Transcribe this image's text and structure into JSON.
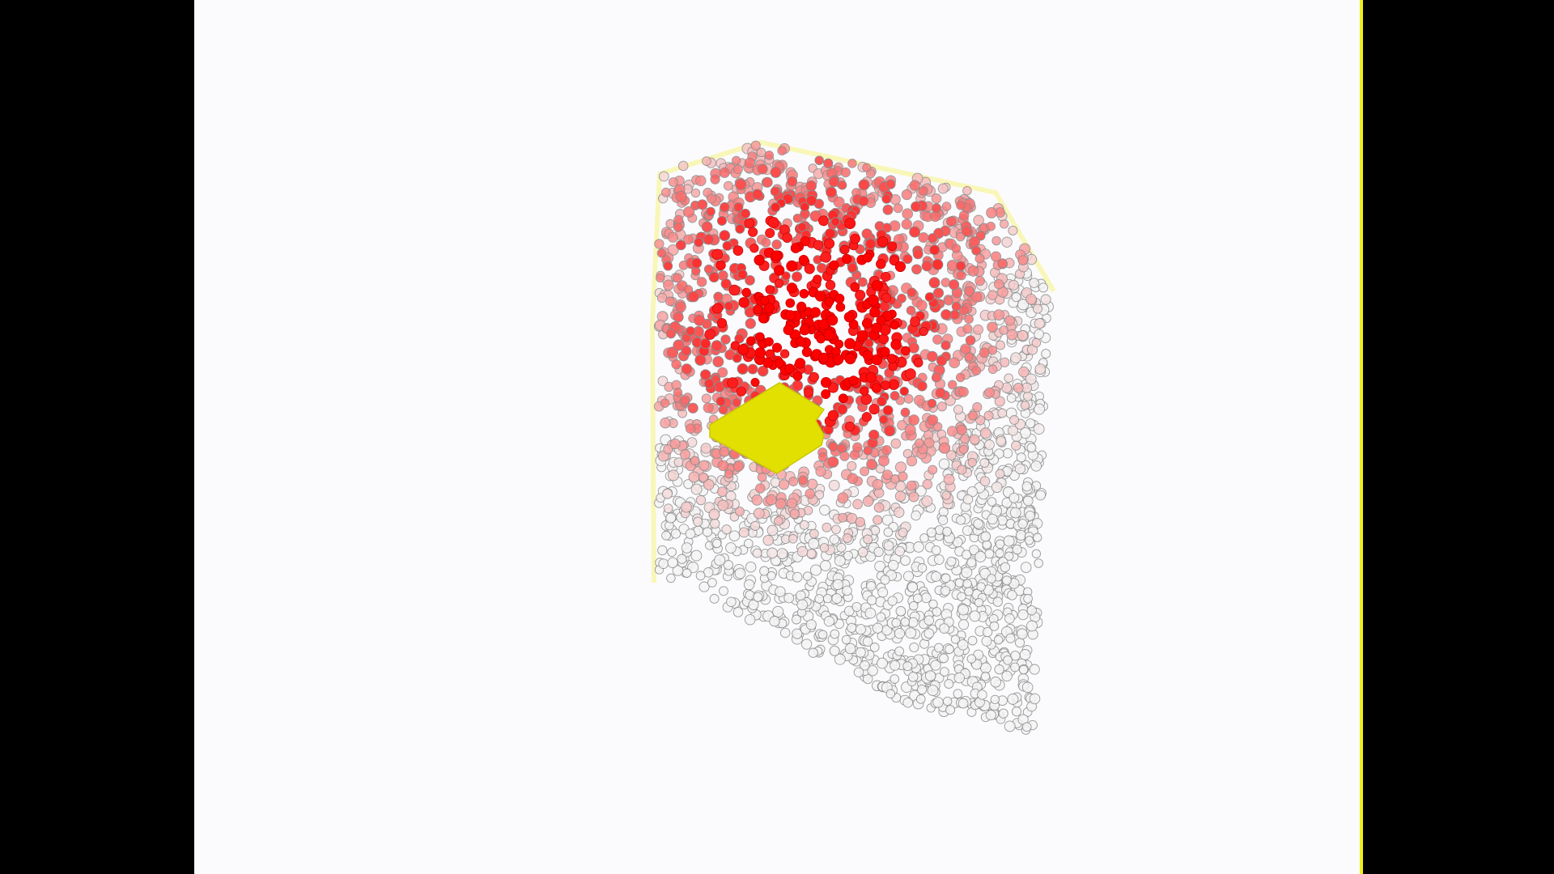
{
  "view": {
    "background_color": "#fbfbfd",
    "letterbox_color": "#000000",
    "edge_highlight_color": "#f2ee1a"
  },
  "particles": {
    "cold_color": "#f4f4f4",
    "hot_color": "#ff0000",
    "outline_color": "#8a8a8a",
    "halo_color": "#f7f59a"
  },
  "inclusion": {
    "shape": "rhombus",
    "color": "#e2e000"
  }
}
